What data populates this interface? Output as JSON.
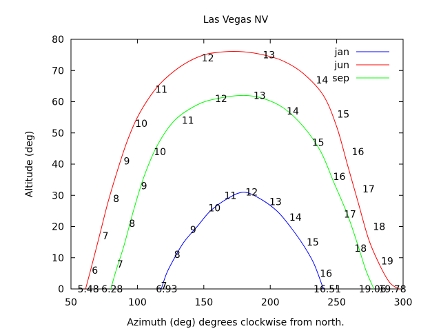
{
  "chart_data": {
    "type": "line",
    "title": "Las Vegas NV",
    "xlabel": "Azimuth (deg) degrees clockwise from north.",
    "ylabel": "Altitude (deg)",
    "xlim": [
      50,
      300
    ],
    "ylim": [
      0,
      80
    ],
    "xticks": [
      "50",
      "100",
      "150",
      "200",
      "250",
      "300"
    ],
    "yticks": [
      "0",
      "10",
      "20",
      "30",
      "40",
      "50",
      "60",
      "70",
      "80"
    ],
    "grid": false,
    "legend_position": "top-right",
    "series": [
      {
        "name": "jan",
        "color": "#0000ff",
        "points": [
          [
            118,
            0
          ],
          [
            122,
            5
          ],
          [
            128,
            10
          ],
          [
            135,
            15
          ],
          [
            145,
            20
          ],
          [
            155,
            25
          ],
          [
            168,
            29
          ],
          [
            180,
            31
          ],
          [
            192,
            29
          ],
          [
            205,
            25
          ],
          [
            215,
            20
          ],
          [
            225,
            14
          ],
          [
            233,
            8
          ],
          [
            240,
            0
          ]
        ],
        "hour_labels": [
          {
            "text": "7",
            "x": 120,
            "y": 1
          },
          {
            "text": "6.93",
            "x": 122,
            "y": 0
          },
          {
            "text": "8",
            "x": 130,
            "y": 11
          },
          {
            "text": "9",
            "x": 142,
            "y": 19
          },
          {
            "text": "10",
            "x": 158,
            "y": 26
          },
          {
            "text": "11",
            "x": 170,
            "y": 30
          },
          {
            "text": "12",
            "x": 186,
            "y": 31
          },
          {
            "text": "13",
            "x": 204,
            "y": 28
          },
          {
            "text": "14",
            "x": 219,
            "y": 23
          },
          {
            "text": "15",
            "x": 232,
            "y": 15
          },
          {
            "text": "16",
            "x": 242,
            "y": 5
          },
          {
            "text": "16.51",
            "x": 243,
            "y": 0
          }
        ]
      },
      {
        "name": "jun",
        "color": "#ff0000",
        "points": [
          [
            61,
            0
          ],
          [
            66,
            8
          ],
          [
            72,
            18
          ],
          [
            78,
            28
          ],
          [
            85,
            38
          ],
          [
            92,
            47
          ],
          [
            100,
            55
          ],
          [
            110,
            62
          ],
          [
            120,
            67
          ],
          [
            135,
            72
          ],
          [
            150,
            75
          ],
          [
            165,
            76
          ],
          [
            180,
            76
          ],
          [
            195,
            75
          ],
          [
            210,
            73
          ],
          [
            225,
            69
          ],
          [
            240,
            62
          ],
          [
            250,
            52
          ],
          [
            258,
            40
          ],
          [
            266,
            28
          ],
          [
            274,
            16
          ],
          [
            282,
            8
          ],
          [
            290,
            2
          ],
          [
            297,
            0
          ]
        ],
        "hour_labels": [
          {
            "text": "5.48",
            "x": 63,
            "y": 0
          },
          {
            "text": "6",
            "x": 68,
            "y": 6
          },
          {
            "text": "7",
            "x": 76,
            "y": 17
          },
          {
            "text": "8",
            "x": 84,
            "y": 29
          },
          {
            "text": "9",
            "x": 92,
            "y": 41
          },
          {
            "text": "10",
            "x": 103,
            "y": 53
          },
          {
            "text": "11",
            "x": 118,
            "y": 64
          },
          {
            "text": "12",
            "x": 153,
            "y": 74
          },
          {
            "text": "13",
            "x": 199,
            "y": 75
          },
          {
            "text": "14",
            "x": 239,
            "y": 67
          },
          {
            "text": "15",
            "x": 255,
            "y": 56
          },
          {
            "text": "16",
            "x": 266,
            "y": 44
          },
          {
            "text": "17",
            "x": 274,
            "y": 32
          },
          {
            "text": "18",
            "x": 282,
            "y": 20
          },
          {
            "text": "19",
            "x": 288,
            "y": 9
          },
          {
            "text": "19.78",
            "x": 292,
            "y": 0
          }
        ]
      },
      {
        "name": "sep",
        "color": "#00ff00",
        "points": [
          [
            80,
            0
          ],
          [
            84,
            6
          ],
          [
            90,
            14
          ],
          [
            97,
            25
          ],
          [
            105,
            36
          ],
          [
            115,
            46
          ],
          [
            128,
            54
          ],
          [
            145,
            59
          ],
          [
            160,
            61
          ],
          [
            180,
            62
          ],
          [
            195,
            61
          ],
          [
            210,
            58
          ],
          [
            225,
            52
          ],
          [
            238,
            44
          ],
          [
            248,
            34
          ],
          [
            258,
            24
          ],
          [
            266,
            14
          ],
          [
            272,
            6
          ],
          [
            278,
            0
          ]
        ],
        "hour_labels": [
          {
            "text": "6.28",
            "x": 81,
            "y": 0
          },
          {
            "text": "7",
            "x": 87,
            "y": 8
          },
          {
            "text": "8",
            "x": 96,
            "y": 21
          },
          {
            "text": "9",
            "x": 105,
            "y": 33
          },
          {
            "text": "10",
            "x": 117,
            "y": 44
          },
          {
            "text": "11",
            "x": 138,
            "y": 54
          },
          {
            "text": "12",
            "x": 163,
            "y": 61
          },
          {
            "text": "13",
            "x": 192,
            "y": 62
          },
          {
            "text": "14",
            "x": 217,
            "y": 57
          },
          {
            "text": "15",
            "x": 236,
            "y": 47
          },
          {
            "text": "16",
            "x": 252,
            "y": 36
          },
          {
            "text": "17",
            "x": 260,
            "y": 24
          },
          {
            "text": "18",
            "x": 268,
            "y": 13
          },
          {
            "text": "19.06",
            "x": 277,
            "y": 0
          }
        ]
      }
    ]
  }
}
